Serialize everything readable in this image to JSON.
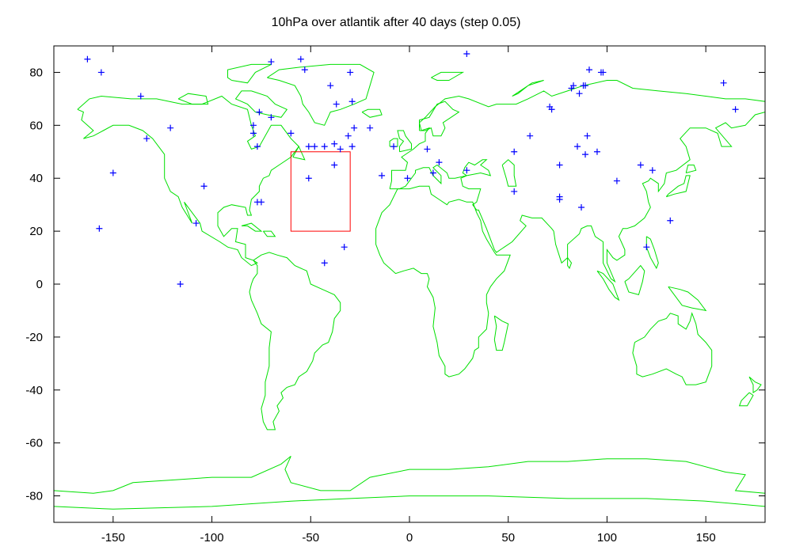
{
  "chart_data": {
    "type": "scatter",
    "title": "10hPa over atlantik after 40 days (step 0.05)",
    "xlabel": "",
    "ylabel": "",
    "xlim": [
      -180,
      180
    ],
    "ylim": [
      -90,
      90
    ],
    "xticks": [
      -150,
      -100,
      -50,
      0,
      50,
      100,
      150
    ],
    "yticks": [
      80,
      60,
      40,
      20,
      0,
      -20,
      -40,
      -60,
      -80
    ],
    "grid": false,
    "colors": {
      "points": "#0000ff",
      "coastline": "#00e000",
      "region": "#ff0000"
    },
    "region_box": {
      "lon": [
        -60,
        -30
      ],
      "lat": [
        20,
        50
      ]
    },
    "series": [
      {
        "values": [
          [
            -163,
            85
          ],
          [
            -156,
            80
          ],
          [
            -136,
            71
          ],
          [
            -133,
            55
          ],
          [
            -121,
            59
          ],
          [
            -150,
            42
          ],
          [
            -157,
            21
          ],
          [
            -104,
            37
          ],
          [
            -108,
            23
          ],
          [
            -116,
            0
          ],
          [
            -70,
            84
          ],
          [
            -55,
            85
          ],
          [
            -53,
            81
          ],
          [
            -40,
            75
          ],
          [
            -30,
            80
          ],
          [
            -29,
            69
          ],
          [
            -37,
            68
          ],
          [
            -76,
            65
          ],
          [
            -70,
            63
          ],
          [
            -79,
            60
          ],
          [
            -79,
            57
          ],
          [
            -77,
            52
          ],
          [
            -60,
            57
          ],
          [
            -48,
            52
          ],
          [
            -51,
            52
          ],
          [
            -43,
            52
          ],
          [
            -38,
            53
          ],
          [
            -35,
            51
          ],
          [
            -31,
            56
          ],
          [
            -28,
            59
          ],
          [
            -29,
            52
          ],
          [
            -38,
            45
          ],
          [
            -51,
            40
          ],
          [
            -77,
            31
          ],
          [
            -75,
            31
          ],
          [
            -43,
            8
          ],
          [
            -33,
            14
          ],
          [
            -20,
            59
          ],
          [
            -14,
            41
          ],
          [
            -8,
            52
          ],
          [
            -1,
            40
          ],
          [
            29,
            87
          ],
          [
            9,
            51
          ],
          [
            12,
            42
          ],
          [
            15,
            46
          ],
          [
            29,
            43
          ],
          [
            53,
            50
          ],
          [
            61,
            56
          ],
          [
            53,
            35
          ],
          [
            71,
            67
          ],
          [
            72,
            66
          ],
          [
            76,
            45
          ],
          [
            76,
            33
          ],
          [
            76,
            32
          ],
          [
            82,
            74
          ],
          [
            83,
            75
          ],
          [
            86,
            72
          ],
          [
            88,
            75
          ],
          [
            89,
            75
          ],
          [
            91,
            81
          ],
          [
            97,
            80
          ],
          [
            98,
            80
          ],
          [
            85,
            52
          ],
          [
            89,
            49
          ],
          [
            90,
            56
          ],
          [
            95,
            50
          ],
          [
            87,
            29
          ],
          [
            105,
            39
          ],
          [
            117,
            45
          ],
          [
            123,
            43
          ],
          [
            120,
            14
          ],
          [
            132,
            24
          ],
          [
            159,
            76
          ],
          [
            165,
            66
          ]
        ]
      }
    ]
  }
}
